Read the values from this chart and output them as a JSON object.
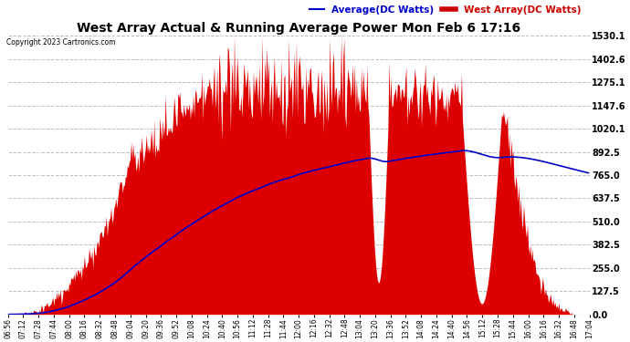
{
  "title": "West Array Actual & Running Average Power Mon Feb 6 17:16",
  "copyright": "Copyright 2023 Cartronics.com",
  "legend_avg": "Average(DC Watts)",
  "legend_west": "West Array(DC Watts)",
  "ylabel_right_values": [
    1530.1,
    1402.6,
    1275.1,
    1147.6,
    1020.1,
    892.5,
    765.0,
    637.5,
    510.0,
    382.5,
    255.0,
    127.5,
    0.0
  ],
  "ymax": 1530.1,
  "ymin": 0.0,
  "bg_color": "#ffffff",
  "fill_color": "#dd0000",
  "line_color": "#0000cc",
  "grid_color": "#bbbbbb",
  "title_color": "#000000",
  "copyright_color": "#000000",
  "avg_legend_color": "#0000cc",
  "west_legend_color": "#cc0000",
  "x_tick_labels": [
    "06:56",
    "07:12",
    "07:28",
    "07:44",
    "08:00",
    "08:16",
    "08:32",
    "08:48",
    "09:04",
    "09:20",
    "09:36",
    "09:52",
    "10:08",
    "10:24",
    "10:40",
    "10:56",
    "11:12",
    "11:28",
    "11:44",
    "12:00",
    "12:16",
    "12:32",
    "12:48",
    "13:04",
    "13:20",
    "13:36",
    "13:52",
    "14:08",
    "14:24",
    "14:40",
    "14:56",
    "15:12",
    "15:28",
    "15:44",
    "16:00",
    "16:16",
    "16:32",
    "16:48",
    "17:04"
  ]
}
